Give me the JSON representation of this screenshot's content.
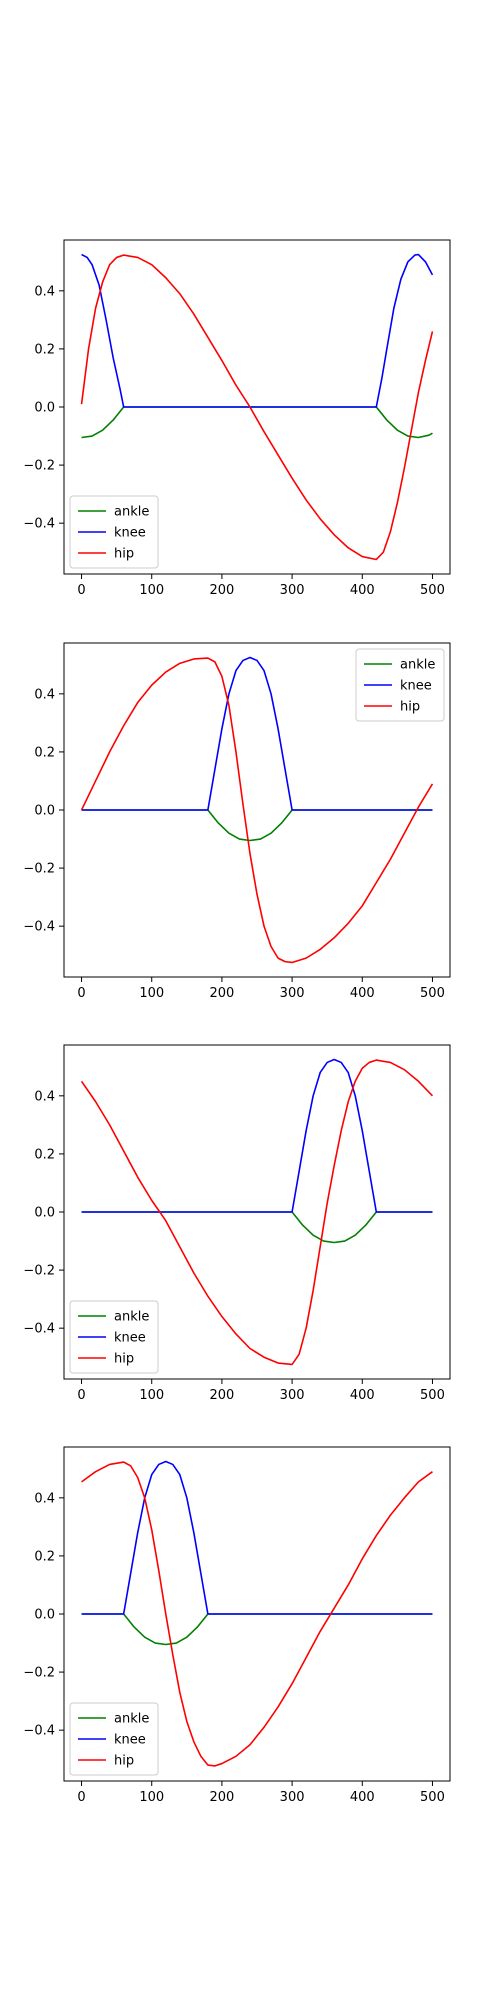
{
  "chart_data": [
    {
      "type": "line",
      "x_ticks": [
        0,
        100,
        200,
        300,
        400,
        500
      ],
      "y_ticks": [
        -0.4,
        -0.2,
        0.0,
        0.2,
        0.4
      ],
      "xlim": [
        -25,
        525
      ],
      "ylim": [
        -0.575,
        0.575
      ],
      "legend": "lower-left",
      "series": [
        {
          "name": "ankle",
          "color": "#008000",
          "points": [
            [
              0,
              -0.105
            ],
            [
              15,
              -0.1
            ],
            [
              30,
              -0.08
            ],
            [
              45,
              -0.045
            ],
            [
              60,
              0
            ],
            [
              420,
              0
            ],
            [
              435,
              -0.045
            ],
            [
              450,
              -0.08
            ],
            [
              465,
              -0.1
            ],
            [
              480,
              -0.105
            ],
            [
              495,
              -0.097
            ],
            [
              500,
              -0.09
            ]
          ]
        },
        {
          "name": "knee",
          "color": "#0000ff",
          "points": [
            [
              0,
              0.525
            ],
            [
              8,
              0.515
            ],
            [
              15,
              0.49
            ],
            [
              25,
              0.42
            ],
            [
              35,
              0.3
            ],
            [
              45,
              0.17
            ],
            [
              55,
              0.06
            ],
            [
              60,
              0
            ],
            [
              420,
              0
            ],
            [
              428,
              0.1
            ],
            [
              435,
              0.2
            ],
            [
              445,
              0.34
            ],
            [
              455,
              0.44
            ],
            [
              465,
              0.5
            ],
            [
              475,
              0.523
            ],
            [
              480,
              0.525
            ],
            [
              490,
              0.5
            ],
            [
              500,
              0.455
            ]
          ]
        },
        {
          "name": "hip",
          "color": "#ff0000",
          "points": [
            [
              0,
              0.01
            ],
            [
              10,
              0.2
            ],
            [
              20,
              0.34
            ],
            [
              30,
              0.43
            ],
            [
              40,
              0.49
            ],
            [
              50,
              0.515
            ],
            [
              60,
              0.523
            ],
            [
              80,
              0.515
            ],
            [
              100,
              0.49
            ],
            [
              120,
              0.445
            ],
            [
              140,
              0.39
            ],
            [
              160,
              0.32
            ],
            [
              180,
              0.24
            ],
            [
              200,
              0.16
            ],
            [
              220,
              0.075
            ],
            [
              240,
              0
            ],
            [
              260,
              -0.085
            ],
            [
              280,
              -0.165
            ],
            [
              300,
              -0.245
            ],
            [
              320,
              -0.32
            ],
            [
              340,
              -0.385
            ],
            [
              360,
              -0.44
            ],
            [
              380,
              -0.485
            ],
            [
              400,
              -0.515
            ],
            [
              420,
              -0.525
            ],
            [
              430,
              -0.5
            ],
            [
              440,
              -0.43
            ],
            [
              450,
              -0.33
            ],
            [
              460,
              -0.21
            ],
            [
              470,
              -0.08
            ],
            [
              480,
              0.05
            ],
            [
              490,
              0.16
            ],
            [
              500,
              0.26
            ]
          ]
        }
      ]
    },
    {
      "type": "line",
      "x_ticks": [
        0,
        100,
        200,
        300,
        400,
        500
      ],
      "y_ticks": [
        -0.4,
        -0.2,
        0.0,
        0.2,
        0.4
      ],
      "xlim": [
        -25,
        525
      ],
      "ylim": [
        -0.575,
        0.575
      ],
      "legend": "upper-right",
      "series": [
        {
          "name": "ankle",
          "color": "#008000",
          "points": [
            [
              0,
              0
            ],
            [
              180,
              0
            ],
            [
              195,
              -0.045
            ],
            [
              210,
              -0.08
            ],
            [
              225,
              -0.1
            ],
            [
              240,
              -0.105
            ],
            [
              255,
              -0.1
            ],
            [
              270,
              -0.08
            ],
            [
              285,
              -0.045
            ],
            [
              300,
              0
            ],
            [
              500,
              0
            ]
          ]
        },
        {
          "name": "knee",
          "color": "#0000ff",
          "points": [
            [
              0,
              0
            ],
            [
              180,
              0
            ],
            [
              190,
              0.14
            ],
            [
              200,
              0.28
            ],
            [
              210,
              0.4
            ],
            [
              220,
              0.48
            ],
            [
              230,
              0.515
            ],
            [
              240,
              0.525
            ],
            [
              250,
              0.515
            ],
            [
              260,
              0.48
            ],
            [
              270,
              0.4
            ],
            [
              280,
              0.28
            ],
            [
              290,
              0.14
            ],
            [
              300,
              0
            ],
            [
              500,
              0
            ]
          ]
        },
        {
          "name": "hip",
          "color": "#ff0000",
          "points": [
            [
              0,
              0
            ],
            [
              20,
              0.1
            ],
            [
              40,
              0.2
            ],
            [
              60,
              0.29
            ],
            [
              80,
              0.37
            ],
            [
              100,
              0.43
            ],
            [
              120,
              0.475
            ],
            [
              140,
              0.505
            ],
            [
              160,
              0.52
            ],
            [
              180,
              0.523
            ],
            [
              190,
              0.51
            ],
            [
              200,
              0.46
            ],
            [
              210,
              0.36
            ],
            [
              220,
              0.2
            ],
            [
              230,
              0.02
            ],
            [
              240,
              -0.15
            ],
            [
              250,
              -0.29
            ],
            [
              260,
              -0.4
            ],
            [
              270,
              -0.47
            ],
            [
              280,
              -0.51
            ],
            [
              290,
              -0.522
            ],
            [
              300,
              -0.525
            ],
            [
              320,
              -0.51
            ],
            [
              340,
              -0.48
            ],
            [
              360,
              -0.44
            ],
            [
              380,
              -0.39
            ],
            [
              400,
              -0.33
            ],
            [
              420,
              -0.25
            ],
            [
              440,
              -0.17
            ],
            [
              460,
              -0.08
            ],
            [
              480,
              0.01
            ],
            [
              500,
              0.09
            ]
          ]
        }
      ]
    },
    {
      "type": "line",
      "x_ticks": [
        0,
        100,
        200,
        300,
        400,
        500
      ],
      "y_ticks": [
        -0.4,
        -0.2,
        0.0,
        0.2,
        0.4
      ],
      "xlim": [
        -25,
        525
      ],
      "ylim": [
        -0.575,
        0.575
      ],
      "legend": "lower-left",
      "series": [
        {
          "name": "ankle",
          "color": "#008000",
          "points": [
            [
              0,
              0
            ],
            [
              300,
              0
            ],
            [
              315,
              -0.045
            ],
            [
              330,
              -0.08
            ],
            [
              345,
              -0.1
            ],
            [
              360,
              -0.105
            ],
            [
              375,
              -0.1
            ],
            [
              390,
              -0.08
            ],
            [
              405,
              -0.045
            ],
            [
              420,
              0
            ],
            [
              500,
              0
            ]
          ]
        },
        {
          "name": "knee",
          "color": "#0000ff",
          "points": [
            [
              0,
              0
            ],
            [
              300,
              0
            ],
            [
              310,
              0.14
            ],
            [
              320,
              0.28
            ],
            [
              330,
              0.4
            ],
            [
              340,
              0.48
            ],
            [
              350,
              0.515
            ],
            [
              360,
              0.525
            ],
            [
              370,
              0.515
            ],
            [
              380,
              0.48
            ],
            [
              390,
              0.4
            ],
            [
              400,
              0.28
            ],
            [
              410,
              0.14
            ],
            [
              420,
              0
            ],
            [
              500,
              0
            ]
          ]
        },
        {
          "name": "hip",
          "color": "#ff0000",
          "points": [
            [
              0,
              0.45
            ],
            [
              20,
              0.38
            ],
            [
              40,
              0.3
            ],
            [
              60,
              0.21
            ],
            [
              80,
              0.12
            ],
            [
              100,
              0.04
            ],
            [
              120,
              -0.03
            ],
            [
              140,
              -0.12
            ],
            [
              160,
              -0.21
            ],
            [
              180,
              -0.29
            ],
            [
              200,
              -0.36
            ],
            [
              220,
              -0.42
            ],
            [
              240,
              -0.47
            ],
            [
              260,
              -0.5
            ],
            [
              280,
              -0.52
            ],
            [
              300,
              -0.525
            ],
            [
              310,
              -0.49
            ],
            [
              320,
              -0.4
            ],
            [
              330,
              -0.27
            ],
            [
              340,
              -0.12
            ],
            [
              350,
              0.03
            ],
            [
              360,
              0.16
            ],
            [
              370,
              0.28
            ],
            [
              380,
              0.38
            ],
            [
              390,
              0.45
            ],
            [
              400,
              0.495
            ],
            [
              410,
              0.515
            ],
            [
              420,
              0.523
            ],
            [
              440,
              0.515
            ],
            [
              460,
              0.49
            ],
            [
              480,
              0.45
            ],
            [
              500,
              0.4
            ]
          ]
        }
      ]
    },
    {
      "type": "line",
      "x_ticks": [
        0,
        100,
        200,
        300,
        400,
        500
      ],
      "y_ticks": [
        -0.4,
        -0.2,
        0.0,
        0.2,
        0.4
      ],
      "xlim": [
        -25,
        525
      ],
      "ylim": [
        -0.575,
        0.575
      ],
      "legend": "lower-left",
      "series": [
        {
          "name": "ankle",
          "color": "#008000",
          "points": [
            [
              0,
              0
            ],
            [
              60,
              0
            ],
            [
              75,
              -0.045
            ],
            [
              90,
              -0.08
            ],
            [
              105,
              -0.1
            ],
            [
              120,
              -0.105
            ],
            [
              135,
              -0.1
            ],
            [
              150,
              -0.08
            ],
            [
              165,
              -0.045
            ],
            [
              180,
              0
            ],
            [
              500,
              0
            ]
          ]
        },
        {
          "name": "knee",
          "color": "#0000ff",
          "points": [
            [
              0,
              0
            ],
            [
              60,
              0
            ],
            [
              70,
              0.14
            ],
            [
              80,
              0.28
            ],
            [
              90,
              0.4
            ],
            [
              100,
              0.48
            ],
            [
              110,
              0.515
            ],
            [
              120,
              0.525
            ],
            [
              130,
              0.515
            ],
            [
              140,
              0.48
            ],
            [
              150,
              0.4
            ],
            [
              160,
              0.28
            ],
            [
              170,
              0.14
            ],
            [
              180,
              0
            ],
            [
              500,
              0
            ]
          ]
        },
        {
          "name": "hip",
          "color": "#ff0000",
          "points": [
            [
              0,
              0.455
            ],
            [
              20,
              0.49
            ],
            [
              40,
              0.515
            ],
            [
              60,
              0.523
            ],
            [
              70,
              0.51
            ],
            [
              80,
              0.47
            ],
            [
              90,
              0.4
            ],
            [
              100,
              0.29
            ],
            [
              110,
              0.15
            ],
            [
              120,
              0
            ],
            [
              130,
              -0.14
            ],
            [
              140,
              -0.27
            ],
            [
              150,
              -0.37
            ],
            [
              160,
              -0.44
            ],
            [
              170,
              -0.49
            ],
            [
              180,
              -0.52
            ],
            [
              190,
              -0.523
            ],
            [
              200,
              -0.515
            ],
            [
              220,
              -0.49
            ],
            [
              240,
              -0.45
            ],
            [
              260,
              -0.39
            ],
            [
              280,
              -0.32
            ],
            [
              300,
              -0.24
            ],
            [
              320,
              -0.15
            ],
            [
              340,
              -0.06
            ],
            [
              360,
              0.02
            ],
            [
              380,
              0.1
            ],
            [
              400,
              0.19
            ],
            [
              420,
              0.27
            ],
            [
              440,
              0.34
            ],
            [
              460,
              0.4
            ],
            [
              480,
              0.455
            ],
            [
              500,
              0.49
            ]
          ]
        }
      ]
    }
  ]
}
